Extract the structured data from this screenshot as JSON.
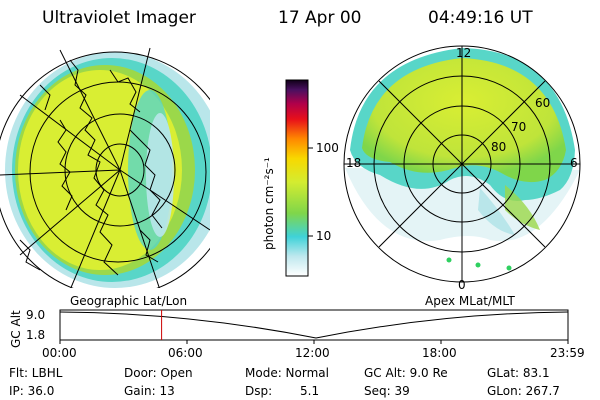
{
  "header": {
    "instrument": "Ultraviolet Imager",
    "date": "17 Apr 00",
    "time": "04:49:16 UT"
  },
  "colorbar": {
    "unit_label": "photon cm⁻²s⁻¹",
    "ticks": [
      "100",
      "10"
    ],
    "scale": "log"
  },
  "polar_plot": {
    "labels": {
      "noon": "12",
      "midnight": "0",
      "dusk": "18",
      "dawn": "6"
    },
    "lat_rings": [
      "60",
      "70",
      "80"
    ]
  },
  "panel_labels": {
    "left": "Geographic Lat/Lon",
    "right": "Apex MLat/MLT"
  },
  "altitude_plot": {
    "ylabel": "GC Alt",
    "yticks": [
      "9.0",
      "1.8"
    ],
    "xticks": [
      "00:00",
      "06:00",
      "12:00",
      "18:00",
      "23:59"
    ],
    "current_time_fraction": 0.2
  },
  "info": {
    "filter": "Flt: LBHL",
    "ip": "IP: 36.0",
    "door": "Door: Open",
    "gain": "Gain: 13",
    "mode": "Mode: Normal",
    "dsp_label": "Dsp:",
    "dsp_value": "5.1",
    "gc_alt": "GC Alt: 9.0 Re",
    "seq": "Seq: 39",
    "glat": "GLat:  83.1",
    "glon": "GLon: 267.7"
  },
  "colors": {
    "aurora_bright": "#d9ee33",
    "aurora_mid": "#9bd84a",
    "aurora_low": "#58d6c8",
    "aurora_faint": "#b9e6ea",
    "marker": "#cc0000"
  }
}
